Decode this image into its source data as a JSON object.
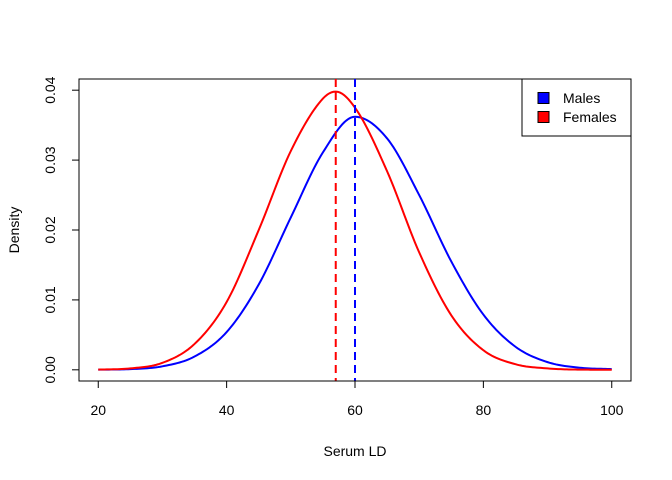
{
  "chart_data": {
    "type": "line",
    "title": "",
    "xlabel": "Serum LD",
    "ylabel": "Density",
    "xlim": [
      17,
      103
    ],
    "ylim": [
      -0.0016,
      0.0416
    ],
    "x_ticks": [
      20,
      40,
      60,
      80,
      100
    ],
    "x_tick_labels": [
      "20",
      "40",
      "60",
      "80",
      "100"
    ],
    "y_ticks": [
      0.0,
      0.01,
      0.02,
      0.03,
      0.04
    ],
    "y_tick_labels": [
      "0.00",
      "0.01",
      "0.02",
      "0.03",
      "0.04"
    ],
    "grid": false,
    "legend": {
      "placement": "top-right",
      "entries": [
        {
          "label": "Males",
          "color": "#0000ff"
        },
        {
          "label": "Females",
          "color": "#ff0000"
        }
      ]
    },
    "series": [
      {
        "name": "Males",
        "color": "#0000ff",
        "x": [
          20,
          25,
          30,
          35,
          40,
          45,
          50,
          55,
          60,
          65,
          70,
          75,
          80,
          85,
          90,
          95,
          100
        ],
        "values": [
          2e-05,
          0.0001,
          0.0005,
          0.0019,
          0.0054,
          0.0122,
          0.0218,
          0.0311,
          0.0362,
          0.0331,
          0.025,
          0.0155,
          0.0079,
          0.0033,
          0.0011,
          0.0003,
          0.0001
        ]
      },
      {
        "name": "Females",
        "color": "#ff0000",
        "x": [
          20,
          25,
          30,
          35,
          40,
          45,
          50,
          55,
          57,
          60,
          65,
          70,
          75,
          80,
          85,
          90,
          95,
          100
        ],
        "values": [
          3e-05,
          0.0002,
          0.001,
          0.0037,
          0.0097,
          0.02,
          0.0313,
          0.0388,
          0.0398,
          0.0375,
          0.0284,
          0.0168,
          0.0078,
          0.0028,
          0.0008,
          0.0002,
          3e-05,
          1e-05
        ]
      }
    ],
    "vertical_lines": [
      {
        "x": 57,
        "color": "#ff0000",
        "style": "dashed"
      },
      {
        "x": 60,
        "color": "#0000ff",
        "style": "dashed"
      }
    ]
  }
}
